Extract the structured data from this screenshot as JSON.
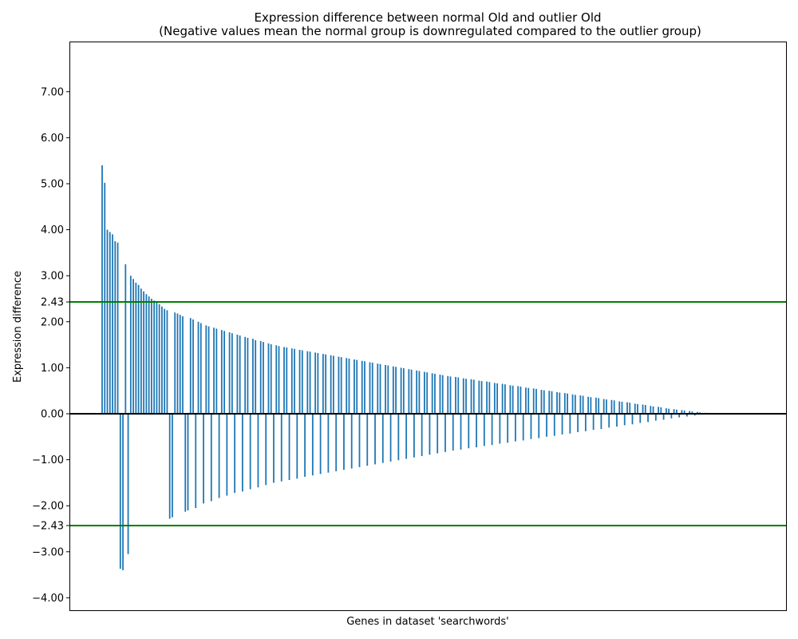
{
  "chart_data": {
    "type": "bar",
    "title": "Expression difference between normal Old and outlier Old",
    "subtitle": "(Negative values mean the normal group is downregulated compared to the outlier group)",
    "xlabel": "Genes in dataset 'searchwords'",
    "ylabel": "Expression difference",
    "ylim": [
      -4.3,
      8.0
    ],
    "yticks": [
      -4,
      -3,
      -2.43,
      -2,
      -1,
      0,
      1,
      2,
      2.43,
      3,
      4,
      5,
      6,
      7
    ],
    "ytick_labels": [
      "−4.00",
      "−3.00",
      "−2.43",
      "−2.00",
      "−1.00",
      "0.00",
      "1.00",
      "2.00",
      "2.43",
      "3.00",
      "4.00",
      "5.00",
      "6.00",
      "7.00"
    ],
    "thresholds": [
      2.43,
      -2.43
    ],
    "threshold_color": "#008000",
    "zero_line_color": "#000000",
    "bar_color": "#1f77b4",
    "grid": false,
    "values": [
      5.4,
      5.02,
      4.0,
      3.95,
      3.9,
      3.75,
      3.72,
      -3.37,
      -3.4,
      3.25,
      -3.05,
      3.0,
      2.93,
      2.85,
      2.8,
      2.72,
      2.66,
      2.6,
      2.55,
      2.5,
      2.46,
      2.43,
      2.38,
      2.33,
      2.28,
      2.25,
      -2.28,
      -2.25,
      2.2,
      2.18,
      2.15,
      2.12,
      -2.13,
      -2.1,
      2.08,
      2.05,
      -2.05,
      2.0,
      1.97,
      -1.95,
      1.92,
      1.9,
      -1.9,
      1.87,
      1.85,
      -1.83,
      1.82,
      1.8,
      -1.78,
      1.77,
      1.75,
      -1.72,
      1.72,
      1.7,
      -1.69,
      1.67,
      1.65,
      -1.64,
      1.63,
      1.6,
      -1.6,
      1.58,
      1.56,
      -1.55,
      1.53,
      1.51,
      -1.5,
      1.49,
      1.47,
      -1.47,
      1.45,
      1.44,
      -1.44,
      1.42,
      1.41,
      -1.41,
      1.39,
      1.38,
      -1.37,
      1.36,
      1.35,
      -1.34,
      1.33,
      1.32,
      -1.31,
      1.3,
      1.29,
      -1.28,
      1.27,
      1.26,
      -1.25,
      1.24,
      1.23,
      -1.22,
      1.21,
      1.2,
      -1.19,
      1.18,
      1.17,
      -1.16,
      1.15,
      1.14,
      -1.13,
      1.12,
      1.11,
      -1.1,
      1.09,
      1.08,
      -1.07,
      1.06,
      1.05,
      -1.04,
      1.03,
      1.02,
      -1.01,
      1.0,
      0.99,
      -0.98,
      0.97,
      0.96,
      -0.95,
      0.94,
      0.93,
      -0.92,
      0.91,
      0.9,
      -0.89,
      0.88,
      0.87,
      -0.86,
      0.85,
      0.84,
      -0.83,
      0.82,
      0.81,
      -0.8,
      0.8,
      0.79,
      -0.78,
      0.77,
      0.76,
      -0.75,
      0.75,
      0.74,
      -0.73,
      0.72,
      0.71,
      -0.7,
      0.7,
      0.69,
      -0.68,
      0.67,
      0.66,
      -0.65,
      0.65,
      0.64,
      -0.63,
      0.62,
      0.61,
      -0.6,
      0.6,
      0.59,
      -0.58,
      0.57,
      0.56,
      -0.55,
      0.55,
      0.54,
      -0.53,
      0.52,
      0.51,
      -0.5,
      0.5,
      0.49,
      -0.48,
      0.47,
      0.46,
      -0.45,
      0.45,
      0.44,
      -0.43,
      0.42,
      0.41,
      -0.4,
      0.4,
      0.39,
      -0.38,
      0.37,
      0.36,
      -0.35,
      0.35,
      0.34,
      -0.33,
      0.32,
      0.31,
      -0.3,
      0.3,
      0.29,
      -0.28,
      0.27,
      0.26,
      -0.25,
      0.25,
      0.24,
      -0.23,
      0.22,
      0.21,
      -0.2,
      0.2,
      0.19,
      -0.18,
      0.17,
      0.16,
      -0.15,
      0.15,
      0.14,
      -0.13,
      0.12,
      0.11,
      -0.1,
      0.1,
      0.09,
      -0.08,
      0.08,
      0.07,
      -0.06,
      0.06,
      0.05,
      -0.04,
      0.04,
      0.03,
      -0.02,
      0.02,
      0.02,
      0.01,
      0.01,
      0.01,
      0.005
    ]
  }
}
